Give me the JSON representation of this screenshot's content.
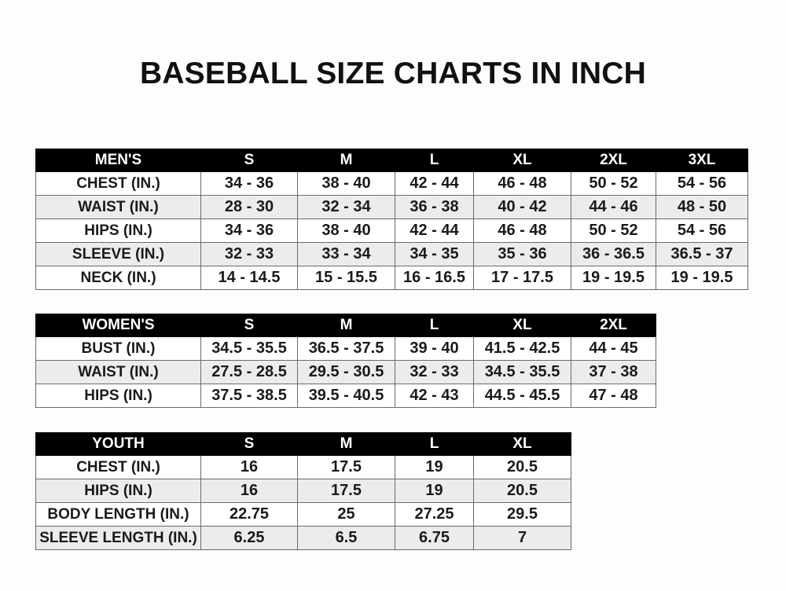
{
  "title": "BASEBALL SIZE CHARTS IN INCH",
  "tables": [
    {
      "header": [
        "MEN'S",
        "S",
        "M",
        "L",
        "XL",
        "2XL",
        "3XL"
      ],
      "rows": [
        [
          "CHEST (IN.)",
          "34 - 36",
          "38 - 40",
          "42 - 44",
          "46 - 48",
          "50 - 52",
          "54 - 56"
        ],
        [
          "WAIST (IN.)",
          "28 - 30",
          "32 - 34",
          "36 - 38",
          "40 - 42",
          "44 - 46",
          "48 - 50"
        ],
        [
          "HIPS (IN.)",
          "34 - 36",
          "38 - 40",
          "42 - 44",
          "46 - 48",
          "50 - 52",
          "54 - 56"
        ],
        [
          "SLEEVE (IN.)",
          "32 - 33",
          "33 - 34",
          "34 - 35",
          "35 - 36",
          "36 - 36.5",
          "36.5 - 37"
        ],
        [
          "NECK (IN.)",
          "14 - 14.5",
          "15 - 15.5",
          "16 - 16.5",
          "17 - 17.5",
          "19 - 19.5",
          "19 - 19.5"
        ]
      ]
    },
    {
      "header": [
        "WOMEN'S",
        "S",
        "M",
        "L",
        "XL",
        "2XL"
      ],
      "rows": [
        [
          "BUST (IN.)",
          "34.5 - 35.5",
          "36.5 - 37.5",
          "39 - 40",
          "41.5 - 42.5",
          "44 - 45"
        ],
        [
          "WAIST (IN.)",
          "27.5 - 28.5",
          "29.5 - 30.5",
          "32 - 33",
          "34.5 - 35.5",
          "37 - 38"
        ],
        [
          "HIPS (IN.)",
          "37.5 - 38.5",
          "39.5 - 40.5",
          "42 - 43",
          "44.5 - 45.5",
          "47 - 48"
        ]
      ]
    },
    {
      "header": [
        "YOUTH",
        "S",
        "M",
        "L",
        "XL"
      ],
      "rows": [
        [
          "CHEST (IN.)",
          "16",
          "17.5",
          "19",
          "20.5"
        ],
        [
          "HIPS (IN.)",
          "16",
          "17.5",
          "19",
          "20.5"
        ],
        [
          "BODY LENGTH (IN.)",
          "22.75",
          "25",
          "27.25",
          "29.5"
        ],
        [
          "SLEEVE LENGTH (IN.)",
          "6.25",
          "6.5",
          "6.75",
          "7"
        ]
      ]
    }
  ]
}
